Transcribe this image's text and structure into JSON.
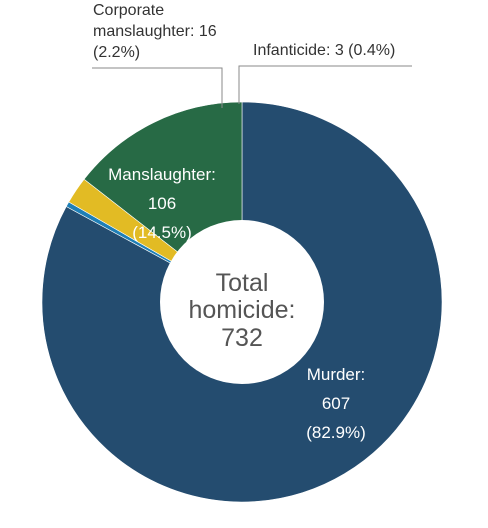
{
  "chart_data": {
    "type": "pie",
    "variant": "donut",
    "slices": [
      {
        "key": "murder",
        "name": "Murder",
        "value": 607,
        "percent": "82.9%",
        "color": "#244c6f"
      },
      {
        "key": "infanticide",
        "name": "Infanticide",
        "value": 3,
        "percent": "0.4%",
        "color": "#1f7fb6"
      },
      {
        "key": "corporate",
        "name": "Corporate manslaughter",
        "value": 16,
        "percent": "2.2%",
        "color": "#e2bb24"
      },
      {
        "key": "manslaughter",
        "name": "Manslaughter",
        "value": 106,
        "percent": "14.5%",
        "color": "#276a45"
      }
    ],
    "labels": {
      "murder": {
        "name": "Murder:",
        "value": "607",
        "percent": "(82.9%)"
      },
      "manslaughter": {
        "name": "Manslaughter:",
        "value": "106",
        "percent": "(14.5%)"
      },
      "corporate": {
        "line1": "Corporate",
        "line2": "manslaughter: 16",
        "line3": "(2.2%)"
      },
      "infanticide": {
        "text": "Infanticide: 3 (0.4%)"
      }
    },
    "center": {
      "line1": "Total",
      "line2": "homicide:",
      "line3": "732"
    }
  }
}
